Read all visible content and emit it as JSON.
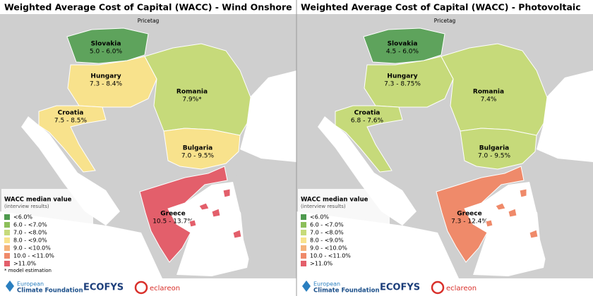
{
  "maps": [
    {
      "title": "Weighted Average Cost of Capital (WACC) - Wind Onshore",
      "subtitle": "Pricetag",
      "countries": [
        {
          "name": "Slovakia",
          "value": "5.0 - 6.0%",
          "color": "#5ea35c"
        },
        {
          "name": "Hungary",
          "value": "7.3 - 8.4%",
          "color": "#f8e28c"
        },
        {
          "name": "Romania",
          "value": "7.9%*",
          "color": "#c6da7a"
        },
        {
          "name": "Croatia",
          "value": "7.5 - 8.5%",
          "color": "#f8e28c"
        },
        {
          "name": "Bulgaria",
          "value": "7.0 - 9.5%",
          "color": "#f8e28c"
        },
        {
          "name": "Greece",
          "value": "10.5 - 13.7%",
          "color": "#e35f6b"
        }
      ],
      "legend": {
        "title": "WACC median value",
        "subtitle": "(interview results)",
        "items": [
          {
            "label": "<6.0%",
            "color": "#4e9a4e"
          },
          {
            "label": "6.0 - <7.0%",
            "color": "#8cbf5a"
          },
          {
            "label": "7.0 - <8.0%",
            "color": "#c6da7a"
          },
          {
            "label": "8.0 - <9.0%",
            "color": "#f8e28c"
          },
          {
            "label": "9.0 - <10.0%",
            "color": "#f5b27a"
          },
          {
            "label": "10.0 - <11.0%",
            "color": "#ef8a6a"
          },
          {
            "label": ">11.0%",
            "color": "#e35f6b"
          }
        ]
      },
      "note": "* model estimation"
    },
    {
      "title": "Weighted Average Cost of Capital (WACC) - Photovoltaic",
      "subtitle": "Pricetag",
      "countries": [
        {
          "name": "Slovakia",
          "value": "4.5 - 6.0%",
          "color": "#5ea35c"
        },
        {
          "name": "Hungary",
          "value": "7.3 - 8.75%",
          "color": "#c6da7a"
        },
        {
          "name": "Romania",
          "value": "7.4%",
          "color": "#c6da7a"
        },
        {
          "name": "Croatia",
          "value": "6.8 - 7.6%",
          "color": "#c6da7a"
        },
        {
          "name": "Bulgaria",
          "value": "7.0 - 9.5%",
          "color": "#c6da7a"
        },
        {
          "name": "Greece",
          "value": "7.3 - 12.4%",
          "color": "#ef8a6a"
        }
      ],
      "legend": {
        "title": "WACC median value",
        "subtitle": "(interview results)",
        "items": [
          {
            "label": "<6.0%",
            "color": "#4e9a4e"
          },
          {
            "label": "6.0 - <7.0%",
            "color": "#8cbf5a"
          },
          {
            "label": "7.0 - <8.0%",
            "color": "#c6da7a"
          },
          {
            "label": "8.0 - <9.0%",
            "color": "#f8e28c"
          },
          {
            "label": "9.0 - <10.0%",
            "color": "#f5b27a"
          },
          {
            "label": "10.0 - <11.0%",
            "color": "#ef8a6a"
          },
          {
            "label": ">11.0%",
            "color": "#e35f6b"
          }
        ]
      }
    }
  ],
  "logos": {
    "ecf": [
      "European",
      "Climate Foundation"
    ],
    "ecofys": "ECOFYS",
    "eclareon": "eclareon"
  }
}
